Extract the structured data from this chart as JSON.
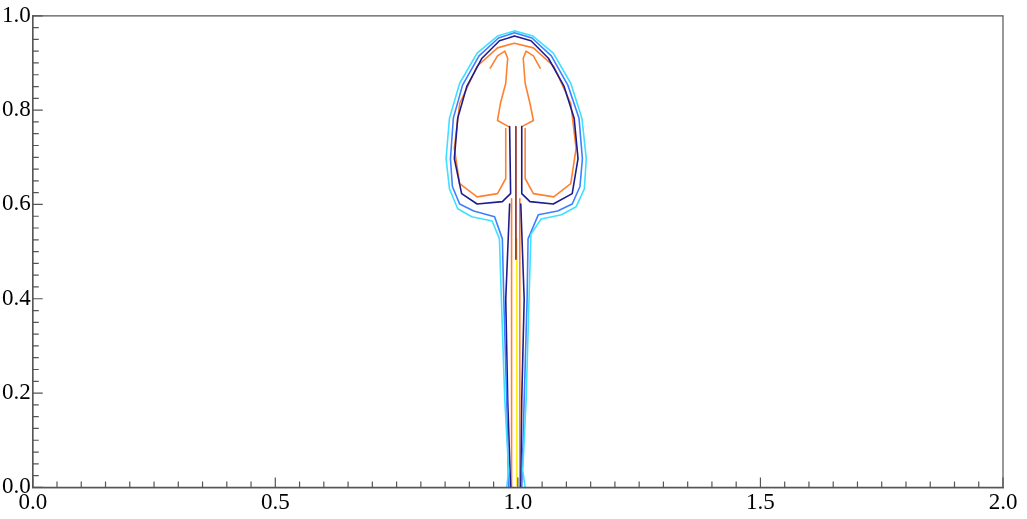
{
  "chart_data": {
    "type": "line",
    "marker": "none",
    "line_style": "solid",
    "legend": false,
    "grid": false,
    "xlim": [
      0,
      2
    ],
    "ylim": [
      0,
      1
    ],
    "xticks": [
      {
        "value": 0,
        "label": "0.0"
      },
      {
        "value": 0.05,
        "label": null
      },
      {
        "value": 0.1,
        "label": null
      },
      {
        "value": 0.15,
        "label": null
      },
      {
        "value": 0.2,
        "label": null
      },
      {
        "value": 0.25,
        "label": null
      },
      {
        "value": 0.3,
        "label": null
      },
      {
        "value": 0.35,
        "label": null
      },
      {
        "value": 0.4,
        "label": null
      },
      {
        "value": 0.45,
        "label": null
      },
      {
        "value": 0.5,
        "label": "0.5"
      },
      {
        "value": 0.55,
        "label": null
      },
      {
        "value": 0.6,
        "label": null
      },
      {
        "value": 0.65,
        "label": null
      },
      {
        "value": 0.7,
        "label": null
      },
      {
        "value": 0.75,
        "label": null
      },
      {
        "value": 0.8,
        "label": null
      },
      {
        "value": 0.85,
        "label": null
      },
      {
        "value": 0.9,
        "label": null
      },
      {
        "value": 0.95,
        "label": null
      },
      {
        "value": 1,
        "label": "1.0"
      },
      {
        "value": 1.05,
        "label": null
      },
      {
        "value": 1.1,
        "label": null
      },
      {
        "value": 1.15,
        "label": null
      },
      {
        "value": 1.2,
        "label": null
      },
      {
        "value": 1.25,
        "label": null
      },
      {
        "value": 1.3,
        "label": null
      },
      {
        "value": 1.35,
        "label": null
      },
      {
        "value": 1.4,
        "label": null
      },
      {
        "value": 1.45,
        "label": null
      },
      {
        "value": 1.5,
        "label": "1.5"
      },
      {
        "value": 1.55,
        "label": null
      },
      {
        "value": 1.6,
        "label": null
      },
      {
        "value": 1.65,
        "label": null
      },
      {
        "value": 1.7,
        "label": null
      },
      {
        "value": 1.75,
        "label": null
      },
      {
        "value": 1.8,
        "label": null
      },
      {
        "value": 1.85,
        "label": null
      },
      {
        "value": 1.9,
        "label": null
      },
      {
        "value": 1.95,
        "label": null
      },
      {
        "value": 2,
        "label": "2.0"
      }
    ],
    "yticks": [
      {
        "value": 0,
        "label": "0.0"
      },
      {
        "value": 0.025,
        "label": null
      },
      {
        "value": 0.05,
        "label": null
      },
      {
        "value": 0.075,
        "label": null
      },
      {
        "value": 0.1,
        "label": null
      },
      {
        "value": 0.125,
        "label": null
      },
      {
        "value": 0.15,
        "label": null
      },
      {
        "value": 0.175,
        "label": null
      },
      {
        "value": 0.2,
        "label": "0.2"
      },
      {
        "value": 0.225,
        "label": null
      },
      {
        "value": 0.25,
        "label": null
      },
      {
        "value": 0.275,
        "label": null
      },
      {
        "value": 0.3,
        "label": null
      },
      {
        "value": 0.325,
        "label": null
      },
      {
        "value": 0.35,
        "label": null
      },
      {
        "value": 0.375,
        "label": null
      },
      {
        "value": 0.4,
        "label": "0.4"
      },
      {
        "value": 0.425,
        "label": null
      },
      {
        "value": 0.45,
        "label": null
      },
      {
        "value": 0.475,
        "label": null
      },
      {
        "value": 0.5,
        "label": null
      },
      {
        "value": 0.525,
        "label": null
      },
      {
        "value": 0.55,
        "label": null
      },
      {
        "value": 0.575,
        "label": null
      },
      {
        "value": 0.6,
        "label": "0.6"
      },
      {
        "value": 0.625,
        "label": null
      },
      {
        "value": 0.65,
        "label": null
      },
      {
        "value": 0.675,
        "label": null
      },
      {
        "value": 0.7,
        "label": null
      },
      {
        "value": 0.725,
        "label": null
      },
      {
        "value": 0.75,
        "label": null
      },
      {
        "value": 0.775,
        "label": null
      },
      {
        "value": 0.8,
        "label": "0.8"
      },
      {
        "value": 0.825,
        "label": null
      },
      {
        "value": 0.85,
        "label": null
      },
      {
        "value": 0.875,
        "label": null
      },
      {
        "value": 0.9,
        "label": null
      },
      {
        "value": 0.925,
        "label": null
      },
      {
        "value": 0.95,
        "label": null
      },
      {
        "value": 0.975,
        "label": null
      },
      {
        "value": 1,
        "label": "1.0"
      }
    ],
    "series": [
      {
        "color": "#40e0ff",
        "x": [
          0.977,
          0.981,
          0.973,
          0.966,
          0.962,
          0.947,
          0.905,
          0.876,
          0.859,
          0.852,
          0.859,
          0.88,
          0.916,
          0.958,
          0.993,
          1.031,
          1.073,
          1.109,
          1.132,
          1.141,
          1.137,
          1.12,
          1.09,
          1.048,
          1.027,
          1.023,
          1.017,
          1.01,
          1.015
        ],
        "values": [
          0,
          0.036,
          0.186,
          0.399,
          0.527,
          0.565,
          0.574,
          0.591,
          0.633,
          0.697,
          0.783,
          0.857,
          0.921,
          0.957,
          0.968,
          0.957,
          0.921,
          0.857,
          0.783,
          0.697,
          0.633,
          0.595,
          0.578,
          0.569,
          0.537,
          0.399,
          0.186,
          0.036,
          0
        ]
      },
      {
        "color": "#3f7fff",
        "x": [
          0.981,
          0.977,
          0.971,
          0.968,
          0.952,
          0.909,
          0.88,
          0.865,
          0.861,
          0.867,
          0.886,
          0.92,
          0.96,
          0.993,
          1.029,
          1.069,
          1.103,
          1.126,
          1.133,
          1.128,
          1.112,
          1.082,
          1.042,
          1.021,
          1.019,
          1.013,
          1.008
        ],
        "values": [
          0,
          0.186,
          0.399,
          0.527,
          0.574,
          0.586,
          0.601,
          0.638,
          0.697,
          0.783,
          0.853,
          0.915,
          0.953,
          0.964,
          0.953,
          0.915,
          0.853,
          0.783,
          0.697,
          0.638,
          0.601,
          0.586,
          0.578,
          0.527,
          0.399,
          0.186,
          0
        ]
      },
      {
        "color": "#1c1c8c",
        "x": [
          0.983,
          0.985,
          0.968,
          0.916,
          0.884,
          0.869,
          0.876,
          0.895,
          0.926,
          0.962,
          0.993,
          1.027,
          1.063,
          1.095,
          1.116,
          1.124,
          1.112,
          1.073,
          1.025,
          1.008,
          1.008,
          null,
          0.983,
          0.975,
          0.979,
          0.985,
          null,
          1.006,
          1.013,
          1.008,
          1.006
        ],
        "values": [
          0.765,
          0.623,
          0.606,
          0.601,
          0.623,
          0.697,
          0.783,
          0.851,
          0.91,
          0.947,
          0.957,
          0.947,
          0.91,
          0.851,
          0.783,
          0.697,
          0.623,
          0.601,
          0.606,
          0.623,
          0.765,
          null,
          0.601,
          0.399,
          0.186,
          0,
          null,
          0.601,
          0.399,
          0.186,
          0
        ]
      },
      {
        "color": "#ff8030",
        "x": [
          0.975,
          0.975,
          0.958,
          0.916,
          0.88,
          0.869,
          0.88,
          0.916,
          0.958,
          0.993,
          1.032,
          1.074,
          1.109,
          1.12,
          1.109,
          1.074,
          1.032,
          1.015,
          1.015,
          null,
          0.943,
          0.958,
          0.973,
          0.979,
          0.975,
          0.964,
          0.958,
          0.981,
          null,
          1.008,
          1.032,
          1.025,
          1.015,
          1.011,
          1.017,
          1.032,
          1.046,
          null,
          0.987,
          0.987,
          null,
          1.004,
          1.004
        ],
        "values": [
          0.761,
          0.655,
          0.623,
          0.616,
          0.644,
          0.719,
          0.814,
          0.893,
          0.932,
          0.942,
          0.932,
          0.893,
          0.814,
          0.719,
          0.644,
          0.616,
          0.623,
          0.655,
          0.761,
          null,
          0.889,
          0.915,
          0.925,
          0.91,
          0.857,
          0.814,
          0.778,
          0.765,
          null,
          0.765,
          0.778,
          0.814,
          0.857,
          0.91,
          0.925,
          0.915,
          0.889,
          null,
          0.612,
          0,
          null,
          0.612,
          0
        ]
      },
      {
        "color": "#8b2020",
        "x": [
          0.996,
          0.996
        ],
        "values": [
          0.765,
          0.484
        ]
      },
      {
        "color": "#ffee00",
        "x": [
          0.998,
          0.998
        ],
        "values": [
          0.527,
          0.004
        ]
      }
    ]
  }
}
